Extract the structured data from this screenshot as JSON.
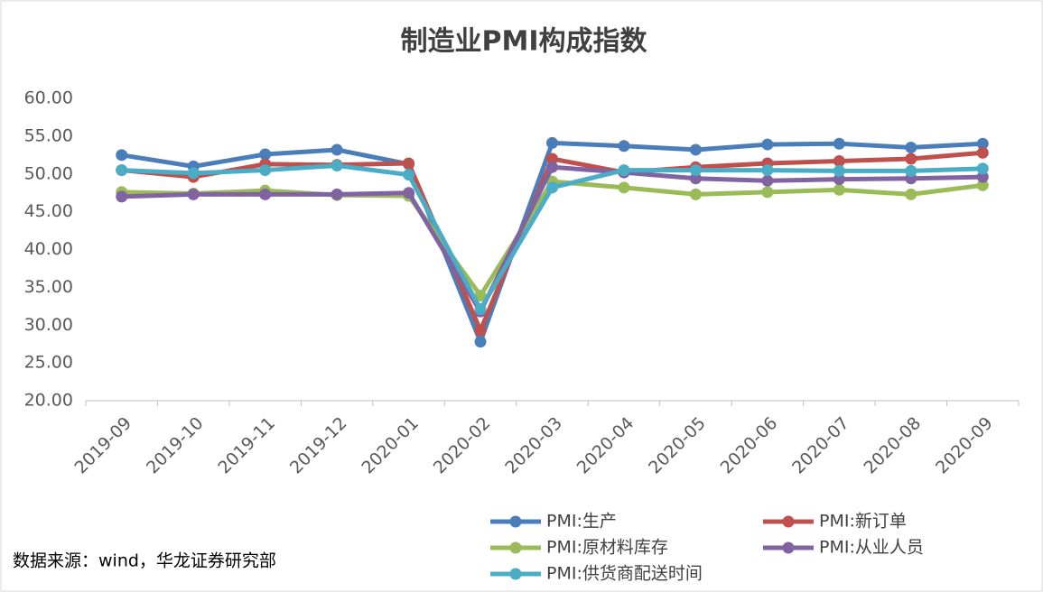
{
  "chart_data": {
    "type": "line",
    "title": "制造业PMI构成指数",
    "categories": [
      "2019-09",
      "2019-10",
      "2019-11",
      "2019-12",
      "2020-01",
      "2020-02",
      "2020-03",
      "2020-04",
      "2020-05",
      "2020-06",
      "2020-07",
      "2020-08",
      "2020-09"
    ],
    "series": [
      {
        "name": "PMI:生产",
        "color": "#4a7ebb",
        "values": [
          52.5,
          51.0,
          52.6,
          53.2,
          51.3,
          27.8,
          54.1,
          53.7,
          53.2,
          53.9,
          54.0,
          53.5,
          54.0
        ]
      },
      {
        "name": "PMI:新订单",
        "color": "#c0504d",
        "values": [
          50.5,
          49.6,
          51.3,
          51.2,
          51.4,
          29.3,
          52.0,
          50.2,
          50.9,
          51.4,
          51.7,
          52.0,
          52.8
        ]
      },
      {
        "name": "PMI:原材料库存",
        "color": "#9bbb59",
        "values": [
          47.6,
          47.4,
          47.8,
          47.2,
          47.1,
          33.9,
          49.0,
          48.2,
          47.3,
          47.6,
          47.9,
          47.3,
          48.5
        ]
      },
      {
        "name": "PMI:从业人员",
        "color": "#8064a2",
        "values": [
          47.0,
          47.3,
          47.3,
          47.3,
          47.5,
          31.8,
          50.9,
          50.2,
          49.4,
          49.1,
          49.3,
          49.4,
          49.6
        ]
      },
      {
        "name": "PMI:供货商配送时间",
        "color": "#4bacc6",
        "values": [
          50.5,
          50.1,
          50.5,
          51.1,
          49.9,
          32.1,
          48.2,
          50.5,
          50.5,
          50.5,
          50.4,
          50.4,
          50.7
        ]
      }
    ],
    "ylim": [
      20,
      60
    ],
    "yticks": [
      {
        "value": 20,
        "label": "20.00"
      },
      {
        "value": 25,
        "label": "25.00"
      },
      {
        "value": 30,
        "label": "30.00"
      },
      {
        "value": 35,
        "label": "35.00"
      },
      {
        "value": 40,
        "label": "40.00"
      },
      {
        "value": 45,
        "label": "45.00"
      },
      {
        "value": 50,
        "label": "50.00"
      },
      {
        "value": 55,
        "label": "55.00"
      },
      {
        "value": 60,
        "label": "60.00"
      }
    ],
    "grid": false,
    "legend": "bottom",
    "source": "数据来源：wind，华龙证券研究部"
  }
}
